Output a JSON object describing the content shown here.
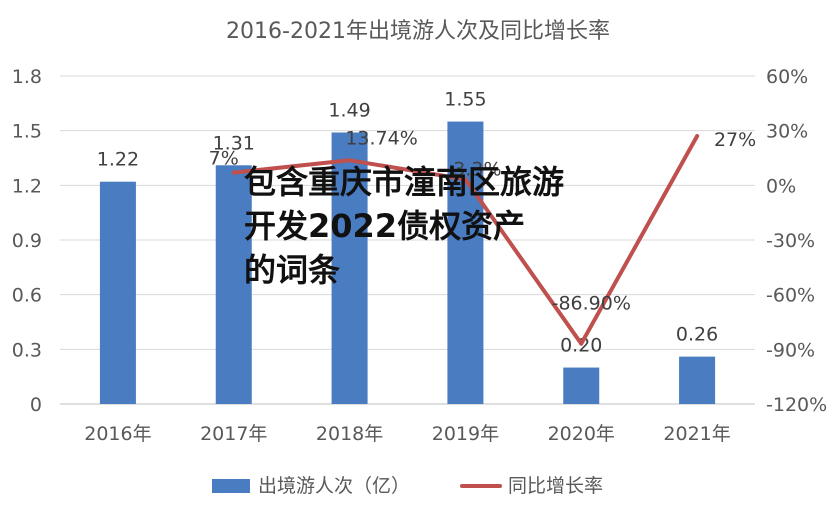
{
  "chart_data": {
    "type": "bar",
    "title": "2016-2021年出境游人次及同比增长率",
    "categories": [
      "2016年",
      "2017年",
      "2018年",
      "2019年",
      "2020年",
      "2021年"
    ],
    "series": [
      {
        "name": "出境游人次（亿）",
        "type": "bar",
        "axis": "left",
        "values": [
          1.22,
          1.31,
          1.49,
          1.55,
          0.2,
          0.26
        ],
        "labels": [
          "1.22",
          "1.31",
          "1.49",
          "1.55",
          "0.20",
          "0.26"
        ],
        "color": "#4a7cc1"
      },
      {
        "name": "同比增长率",
        "type": "line",
        "axis": "right",
        "values": [
          null,
          7.0,
          13.74,
          3.3,
          -86.9,
          27.0
        ],
        "labels": [
          "",
          "7%",
          "13.74%",
          "3.3%",
          "-86.90%",
          "27%"
        ],
        "color": "#c0504d"
      }
    ],
    "yaxis_left": {
      "min": 0,
      "max": 1.8,
      "ticks": [
        "0",
        "0.3",
        "0.6",
        "0.9",
        "1.2",
        "1.5",
        "1.8"
      ]
    },
    "yaxis_right": {
      "min": -120,
      "max": 60,
      "ticks": [
        "-120%",
        "-90%",
        "-60%",
        "-30%",
        "0%",
        "30%",
        "60%"
      ]
    },
    "grid": true,
    "legend_position": "bottom"
  },
  "overlay_text": [
    "包含重庆市潼南区旅游",
    "开发2022债权资产",
    "的词条"
  ]
}
